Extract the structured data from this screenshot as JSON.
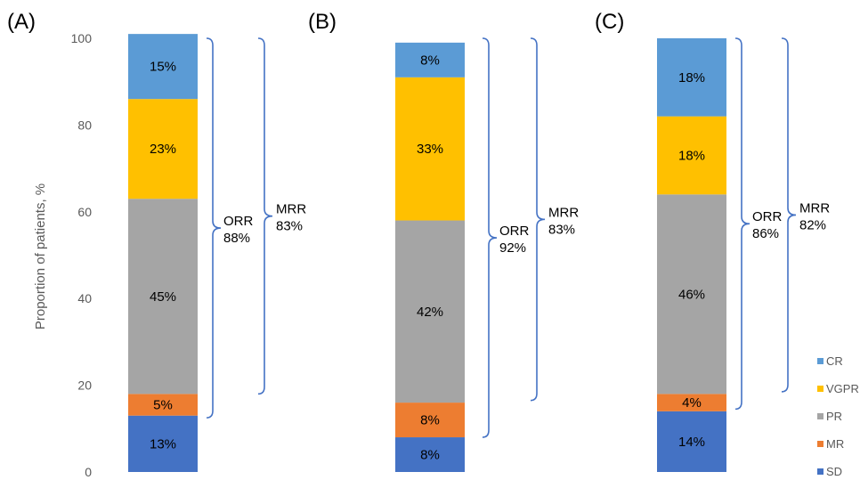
{
  "chart_data": {
    "type": "bar",
    "stacked": true,
    "ylabel": "Proportion of patients, %",
    "ylim": [
      0,
      100
    ],
    "yticks": [
      0,
      20,
      40,
      60,
      80,
      100
    ],
    "series_order": [
      "SD",
      "MR",
      "PR",
      "VGPR",
      "CR"
    ],
    "colors": {
      "SD": "#4472C4",
      "MR": "#ED7D31",
      "PR": "#A5A5A5",
      "VGPR": "#FFC000",
      "CR": "#5B9BD5"
    },
    "legend": {
      "position": "bottom-right",
      "entries": [
        "CR",
        "VGPR",
        "PR",
        "MR",
        "SD"
      ]
    },
    "panels": [
      {
        "label": "(A)",
        "values": {
          "SD": 13,
          "MR": 5,
          "PR": 45,
          "VGPR": 23,
          "CR": 15
        },
        "segment_labels": {
          "SD": "13%",
          "MR": "5%",
          "PR": "45%",
          "VGPR": "23%",
          "CR": "15%"
        },
        "orr": {
          "label": "ORR",
          "value": "88%",
          "from": 12.5,
          "to": 100
        },
        "mrr": {
          "label": "MRR",
          "value": "83%",
          "from": 18,
          "to": 100
        }
      },
      {
        "label": "(B)",
        "values": {
          "SD": 8,
          "MR": 8,
          "PR": 42,
          "VGPR": 33,
          "CR": 8
        },
        "segment_labels": {
          "SD": "8%",
          "MR": "8%",
          "PR": "42%",
          "VGPR": "33%",
          "CR": "8%"
        },
        "orr": {
          "label": "ORR",
          "value": "92%",
          "from": 8,
          "to": 100
        },
        "mrr": {
          "label": "MRR",
          "value": "83%",
          "from": 16.5,
          "to": 100
        }
      },
      {
        "label": "(C)",
        "values": {
          "SD": 14,
          "MR": 4,
          "PR": 46,
          "VGPR": 18,
          "CR": 18
        },
        "segment_labels": {
          "SD": "14%",
          "MR": "4%",
          "PR": "46%",
          "VGPR": "18%",
          "CR": "18%"
        },
        "orr": {
          "label": "ORR",
          "value": "86%",
          "from": 14.5,
          "to": 100
        },
        "mrr": {
          "label": "MRR",
          "value": "82%",
          "from": 18.5,
          "to": 100
        }
      }
    ]
  }
}
